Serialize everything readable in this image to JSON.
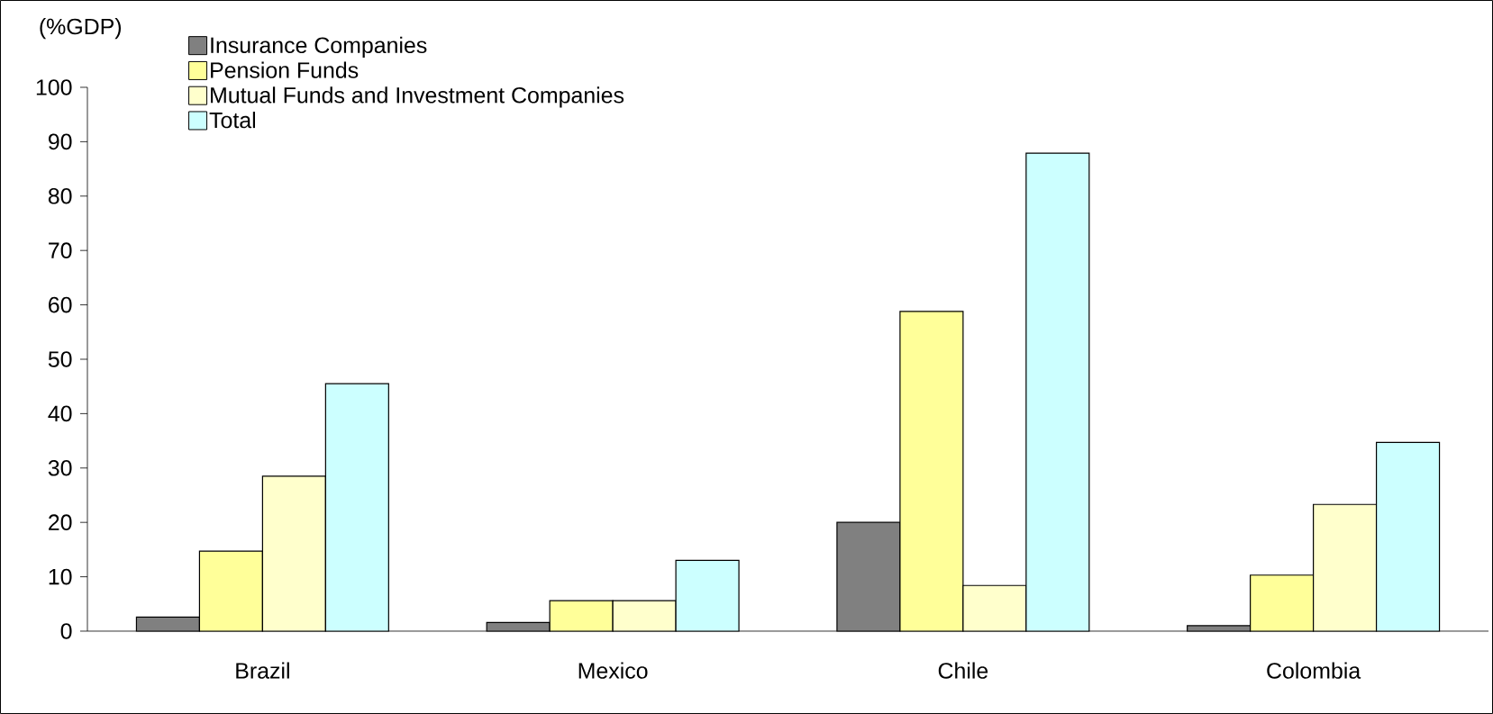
{
  "chart_data": {
    "type": "bar",
    "ylabel": "(%GDP)",
    "categories": [
      "Brazil",
      "Mexico",
      "Chile",
      "Colombia"
    ],
    "series": [
      {
        "name": "Insurance Companies",
        "color": "#808080",
        "values": [
          2.6,
          1.6,
          20,
          1
        ]
      },
      {
        "name": "Pension Funds",
        "color": "#ffff99",
        "values": [
          14.7,
          5.6,
          58.8,
          10.3
        ]
      },
      {
        "name": "Mutual Funds and Investment Companies",
        "color": "#ffffcc",
        "values": [
          28.5,
          5.6,
          8.4,
          23.3
        ]
      },
      {
        "name": "Total",
        "color": "#ccffff",
        "values": [
          45.5,
          13,
          87.9,
          34.7
        ]
      }
    ],
    "ylim": [
      0,
      100
    ],
    "yticks": [
      0,
      10,
      20,
      30,
      40,
      50,
      60,
      70,
      80,
      90,
      100
    ],
    "grid": false,
    "legend": "top left"
  }
}
